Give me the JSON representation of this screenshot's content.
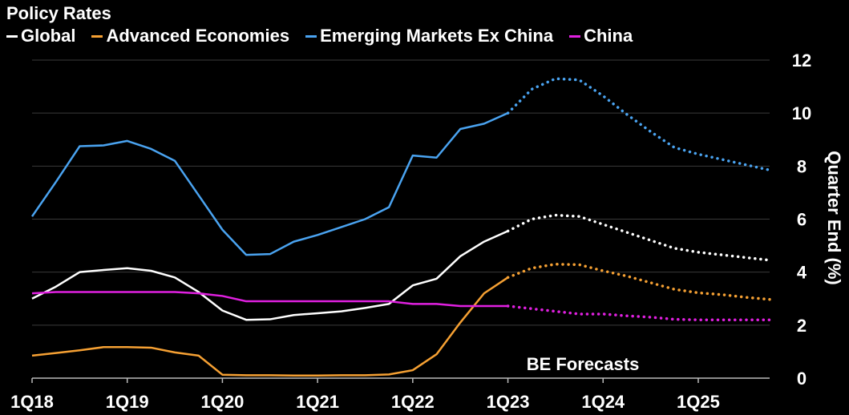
{
  "chart_data": {
    "type": "line",
    "title": "Policy Rates",
    "ylabel": "Quarter End (%)",
    "xlabel": "",
    "ylim": [
      0,
      12
    ],
    "yticks": [
      0,
      2,
      4,
      6,
      8,
      10,
      12
    ],
    "x_tick_labels": [
      "1Q18",
      "1Q19",
      "1Q20",
      "1Q21",
      "1Q22",
      "1Q23",
      "1Q24",
      "1Q25"
    ],
    "x": [
      "1Q18",
      "2Q18",
      "3Q18",
      "4Q18",
      "1Q19",
      "2Q19",
      "3Q19",
      "4Q19",
      "1Q20",
      "2Q20",
      "3Q20",
      "4Q20",
      "1Q21",
      "2Q21",
      "3Q21",
      "4Q21",
      "1Q22",
      "2Q22",
      "3Q22",
      "4Q22",
      "1Q23",
      "2Q23",
      "3Q23",
      "4Q23",
      "1Q24",
      "2Q24",
      "3Q24",
      "4Q24",
      "1Q25",
      "2Q25",
      "3Q25",
      "4Q25"
    ],
    "forecast_start": "1Q23",
    "annotation": "BE Forecasts",
    "grid": true,
    "legend_position": "top-left",
    "series": [
      {
        "name": "Global",
        "color": "#ffffff",
        "values": [
          3.0,
          3.45,
          4.0,
          4.08,
          4.15,
          4.05,
          3.8,
          3.25,
          2.55,
          2.2,
          2.22,
          2.38,
          2.45,
          2.52,
          2.65,
          2.8,
          3.5,
          3.75,
          4.6,
          5.15,
          5.55,
          6.0,
          6.15,
          6.1,
          5.8,
          5.5,
          5.2,
          4.9,
          4.75,
          4.65,
          4.55,
          4.45
        ]
      },
      {
        "name": "Advanced Economies",
        "color": "#f5a033",
        "values": [
          0.85,
          0.95,
          1.05,
          1.17,
          1.17,
          1.15,
          0.97,
          0.85,
          0.13,
          0.11,
          0.11,
          0.1,
          0.1,
          0.11,
          0.11,
          0.14,
          0.3,
          0.9,
          2.1,
          3.2,
          3.8,
          4.15,
          4.3,
          4.28,
          4.05,
          3.85,
          3.6,
          3.35,
          3.22,
          3.15,
          3.05,
          2.97
        ]
      },
      {
        "name": "Emerging Markets Ex China",
        "color": "#4aa3f0",
        "values": [
          6.1,
          7.4,
          8.75,
          8.78,
          8.95,
          8.65,
          8.2,
          6.9,
          5.6,
          4.65,
          4.68,
          5.15,
          5.4,
          5.7,
          6.0,
          6.45,
          8.4,
          8.32,
          9.4,
          9.6,
          10.0,
          10.9,
          11.3,
          11.25,
          10.65,
          9.95,
          9.3,
          8.7,
          8.45,
          8.25,
          8.05,
          7.85
        ]
      },
      {
        "name": "China",
        "color": "#e020e0",
        "values": [
          3.2,
          3.25,
          3.25,
          3.25,
          3.25,
          3.25,
          3.25,
          3.2,
          3.1,
          2.9,
          2.9,
          2.9,
          2.9,
          2.9,
          2.9,
          2.9,
          2.8,
          2.8,
          2.72,
          2.72,
          2.72,
          2.62,
          2.52,
          2.42,
          2.42,
          2.35,
          2.3,
          2.22,
          2.2,
          2.2,
          2.2,
          2.2
        ]
      }
    ]
  }
}
